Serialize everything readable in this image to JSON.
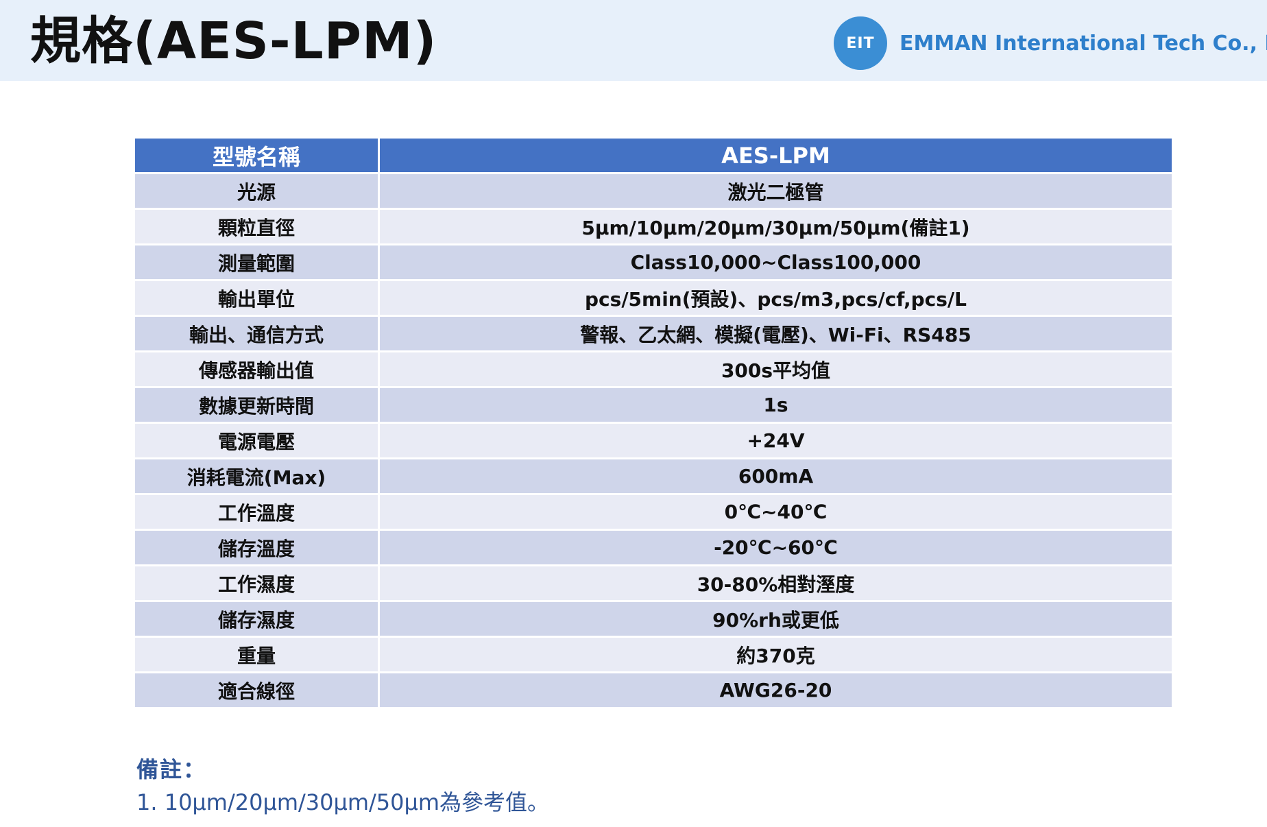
{
  "header": {
    "title": "規格(AES-LPM)",
    "logo_text": "EIT",
    "company": "EMMAN International Tech Co., Ltd."
  },
  "table": {
    "columns": [
      "型號名稱",
      "AES-LPM"
    ],
    "rows": [
      {
        "label": "光源",
        "value": "激光二極管"
      },
      {
        "label": "顆粒直徑",
        "value": "5μm/10μm/20μm/30μm/50μm(備註1)"
      },
      {
        "label": "測量範圍",
        "value": "Class10,000~Class100,000"
      },
      {
        "label": "輸出單位",
        "value": "pcs/5min(預設)、pcs/m3,pcs/cf,pcs/L"
      },
      {
        "label": "輸出、通信方式",
        "value": "警報、乙太網、模擬(電壓)、Wi-Fi、RS485"
      },
      {
        "label": "傳感器輸出值",
        "value": "300s平均值"
      },
      {
        "label": "數據更新時間",
        "value": "1s"
      },
      {
        "label": "電源電壓",
        "value": "+24V"
      },
      {
        "label": "消耗電流(Max)",
        "value": "600mA"
      },
      {
        "label": "工作溫度",
        "value": "0℃~40℃"
      },
      {
        "label": "儲存溫度",
        "value": "-20℃~60℃"
      },
      {
        "label": "工作濕度",
        "value": "30-80%相對溼度"
      },
      {
        "label": "儲存濕度",
        "value": "90%rh或更低"
      },
      {
        "label": "重量",
        "value": "約370克"
      },
      {
        "label": "適合線徑",
        "value": "AWG26-20"
      }
    ]
  },
  "notes": {
    "title": "備註：",
    "items": [
      "1. 10μm/20μm/30μm/50μm為參考值。"
    ]
  },
  "colors": {
    "header_bg": "#e7f0fa",
    "table_header": "#4472c4",
    "row_dark": "#cfd5ea",
    "row_light": "#e9ebf5",
    "company_text": "#2e7fcb",
    "notes_text": "#2f5597"
  }
}
